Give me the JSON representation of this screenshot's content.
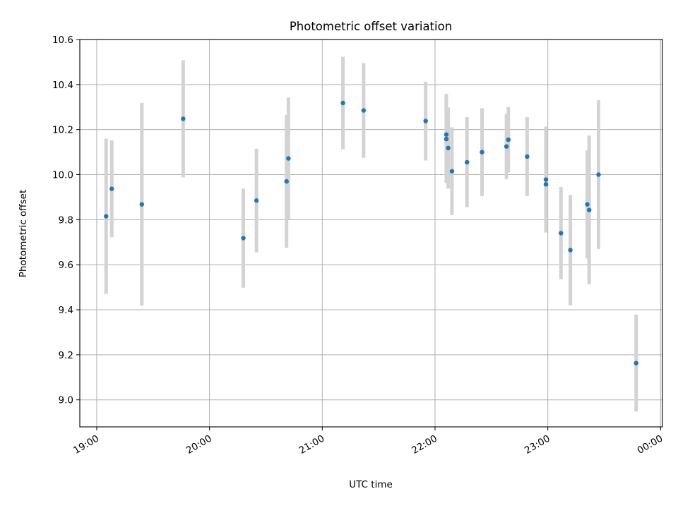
{
  "chart_data": {
    "type": "scatter",
    "title": "Photometric offset variation",
    "xlabel": "UTC time",
    "ylabel": "Photometric offset",
    "x_axis": "time",
    "xlim": [
      "18:51",
      "00:01"
    ],
    "ylim": [
      8.88,
      10.6
    ],
    "xticks": [
      "19:00",
      "20:00",
      "21:00",
      "22:00",
      "23:00",
      "00:00"
    ],
    "yticks": [
      "9.0",
      "9.2",
      "9.4",
      "9.6",
      "9.8",
      "10.0",
      "10.2",
      "10.4",
      "10.6"
    ],
    "grid": true,
    "colors": {
      "marker": "#1f77b4",
      "errorbar": "#d3d3d3",
      "grid": "#b0b0b0"
    },
    "points": [
      {
        "time": "19:05",
        "y": 9.815,
        "err": 0.345
      },
      {
        "time": "19:08",
        "y": 9.937,
        "err": 0.215
      },
      {
        "time": "19:24",
        "y": 9.868,
        "err": 0.45
      },
      {
        "time": "19:46",
        "y": 10.248,
        "err": 0.26
      },
      {
        "time": "20:18",
        "y": 9.718,
        "err": 0.22
      },
      {
        "time": "20:25",
        "y": 9.885,
        "err": 0.23
      },
      {
        "time": "20:41",
        "y": 9.97,
        "err": 0.295
      },
      {
        "time": "20:42",
        "y": 10.072,
        "err": 0.27
      },
      {
        "time": "21:11",
        "y": 10.318,
        "err": 0.205
      },
      {
        "time": "21:22",
        "y": 10.285,
        "err": 0.21
      },
      {
        "time": "21:55",
        "y": 10.238,
        "err": 0.175
      },
      {
        "time": "22:06",
        "y": 10.158,
        "err": 0.195
      },
      {
        "time": "22:06",
        "y": 10.178,
        "err": 0.18
      },
      {
        "time": "22:07",
        "y": 10.118,
        "err": 0.18
      },
      {
        "time": "22:09",
        "y": 10.015,
        "err": 0.195
      },
      {
        "time": "22:17",
        "y": 10.055,
        "err": 0.2
      },
      {
        "time": "22:25",
        "y": 10.1,
        "err": 0.195
      },
      {
        "time": "22:38",
        "y": 10.125,
        "err": 0.145
      },
      {
        "time": "22:39",
        "y": 10.155,
        "err": 0.145
      },
      {
        "time": "22:49",
        "y": 10.08,
        "err": 0.175
      },
      {
        "time": "22:59",
        "y": 9.957,
        "err": 0.175
      },
      {
        "time": "22:59",
        "y": 9.978,
        "err": 0.235
      },
      {
        "time": "23:07",
        "y": 9.74,
        "err": 0.205
      },
      {
        "time": "23:12",
        "y": 9.665,
        "err": 0.245
      },
      {
        "time": "23:21",
        "y": 9.868,
        "err": 0.24
      },
      {
        "time": "23:22",
        "y": 9.843,
        "err": 0.33
      },
      {
        "time": "23:27",
        "y": 10.0,
        "err": 0.33
      },
      {
        "time": "23:47",
        "y": 9.163,
        "err": 0.215
      }
    ]
  }
}
